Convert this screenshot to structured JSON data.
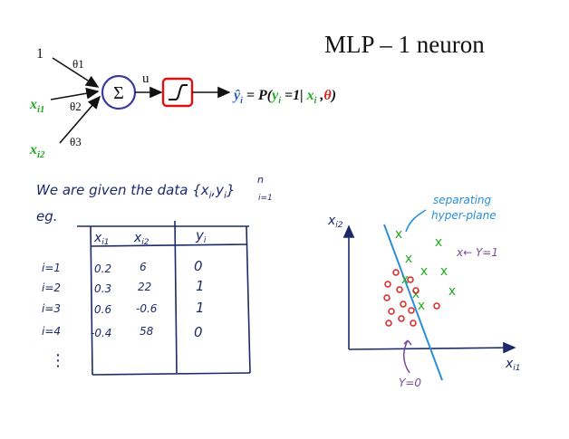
{
  "title": "MLP – 1 neuron",
  "neuron": {
    "inputs": [
      {
        "label": "1",
        "weight": "θ1"
      },
      {
        "label": "x",
        "sub": "i1",
        "weight": "θ2"
      },
      {
        "label": "x",
        "sub": "i2",
        "weight": "θ3"
      }
    ],
    "sum_symbol": "Σ",
    "u_label": "u",
    "output": {
      "yhat": "ŷ",
      "yhat_sub": "i",
      "eq": "= P(",
      "y": "y",
      "y_sub": "i",
      "eq_mid": " =1| ",
      "x": "x",
      "x_sub": "i",
      "comma": " ,",
      "theta": "θ",
      "close": ")"
    }
  },
  "notes": {
    "given_text": "We are given the data {x",
    "given_sub_i": "i",
    "given_mid": ",y",
    "given_sub_i2": "i",
    "given_close": "}",
    "given_sup_n": "n",
    "given_sub_range": "i=1",
    "eg": "eg."
  },
  "table": {
    "headers": [
      "x",
      "x",
      "y"
    ],
    "header_subs": [
      "i1",
      "i2",
      "i"
    ],
    "row_labels": [
      "i=1",
      "i=2",
      "i=3",
      "i=4"
    ],
    "rows": [
      [
        "0.2",
        "6",
        "0"
      ],
      [
        "0.3",
        "22",
        "1"
      ],
      [
        "0.6",
        "-0.6",
        "1"
      ],
      [
        "-0.4",
        "58",
        "0"
      ]
    ],
    "ellipsis": "⋮"
  },
  "plot": {
    "y_axis_label": "x",
    "y_axis_sub": "i2",
    "x_axis_label": "x",
    "x_axis_sub": "i1",
    "separator_label_1": "separating",
    "separator_label_2": "hyper-plane",
    "class1_label": "x← Y=1",
    "class0_label": "Y=0"
  },
  "colors": {
    "green": "#22aa22",
    "red": "#dd2222",
    "blue": "#1f5fbf",
    "separator": "#2a8fd8",
    "purple": "#7a4a9a",
    "neuron_circle": "#3a3aa0",
    "activation_box": "#dd1111"
  }
}
